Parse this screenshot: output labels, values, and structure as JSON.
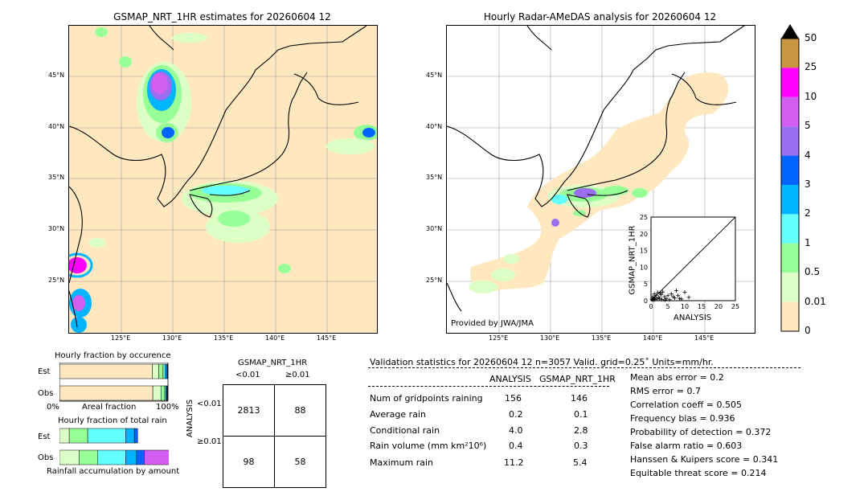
{
  "left_map": {
    "title": "GSMAP_NRT_1HR estimates for 20260604 12",
    "lat_ticks": [
      "45°N",
      "40°N",
      "35°N",
      "30°N",
      "25°N"
    ],
    "lon_ticks": [
      "125°E",
      "130°E",
      "135°E",
      "140°E",
      "145°E"
    ]
  },
  "right_map": {
    "title": "Hourly Radar-AMeDAS analysis for 20260604 12",
    "lat_ticks": [
      "45°N",
      "40°N",
      "35°N",
      "30°N",
      "25°N"
    ],
    "lon_ticks": [
      "125°E",
      "130°E",
      "135°E",
      "140°E",
      "145°E"
    ],
    "credit": "Provided by JWA/JMA"
  },
  "colorbar": {
    "labels": [
      "50",
      "25",
      "10",
      "5",
      "4",
      "3",
      "2",
      "1",
      "0.5",
      "0.01",
      "0"
    ],
    "colors": [
      "#c89640",
      "#ff00ff",
      "#d25ff0",
      "#9a6ef0",
      "#0064ff",
      "#00b4ff",
      "#64ffff",
      "#96ff96",
      "#dcffc8",
      "#ffe8c0"
    ],
    "over_color": "#000000"
  },
  "scatter_inset": {
    "xlabel": "ANALYSIS",
    "ylabel": "GSMAP_NRT_1HR",
    "ticks": [
      "0",
      "5",
      "10",
      "15",
      "20",
      "25"
    ]
  },
  "fraction_occurrence": {
    "title": "Hourly fraction by occurence",
    "rows": [
      "Est",
      "Obs"
    ],
    "xleft": "0%",
    "xmid": "Areal fraction",
    "xright": "100%"
  },
  "fraction_total": {
    "title": "Hourly fraction of total rain",
    "rows": [
      "Est",
      "Obs"
    ],
    "xlabel": "Rainfall accumulation by amount"
  },
  "contingency": {
    "title": "GSMAP_NRT_1HR",
    "col_headers": [
      "<0.01",
      "≥0.01"
    ],
    "row_label": "ANALYSIS",
    "row_headers": [
      "<0.01",
      "≥0.01"
    ],
    "cells": [
      [
        "2813",
        "88"
      ],
      [
        "98",
        "58"
      ]
    ]
  },
  "validation": {
    "header": "Validation statistics for 20260604 12  n=3057 Valid. grid=0.25˚ Units=mm/hr.",
    "col_analysis": "ANALYSIS",
    "col_gsmap": "GSMAP_NRT_1HR",
    "rows": [
      {
        "label": "Num of gridpoints raining",
        "analysis": "156",
        "gsmap": "146"
      },
      {
        "label": "Average rain",
        "analysis": "0.2",
        "gsmap": "0.1"
      },
      {
        "label": "Conditional rain",
        "analysis": "4.0",
        "gsmap": "2.8"
      },
      {
        "label": "Rain volume (mm km²10⁶)",
        "analysis": "0.4",
        "gsmap": "0.3"
      },
      {
        "label": "Maximum rain",
        "analysis": "11.2",
        "gsmap": "5.4"
      }
    ],
    "scores": [
      "Mean abs error =    0.2",
      "RMS error =    0.7",
      "Correlation coeff =  0.505",
      "Frequency bias =  0.936",
      "Probability of detection =  0.372",
      "False alarm ratio =  0.603",
      "Hanssen & Kuipers score =  0.341",
      "Equitable threat score =  0.214"
    ]
  },
  "chart_data": [
    {
      "type": "scatter",
      "title": "",
      "xlabel": "ANALYSIS",
      "ylabel": "GSMAP_NRT_1HR",
      "xlim": [
        0,
        25
      ],
      "ylim": [
        0,
        25
      ],
      "x": [
        0.3,
        0.5,
        0.8,
        1.0,
        1.2,
        1.5,
        1.8,
        2.0,
        2.3,
        2.5,
        3.0,
        3.2,
        3.5,
        4.0,
        4.5,
        5.0,
        5.5,
        6.0,
        7.0,
        7.5,
        8.0,
        9.0,
        10.0,
        11.2,
        0.6,
        1.1,
        2.8,
        4.2,
        6.5,
        8.5
      ],
      "y": [
        0.4,
        1.2,
        0.6,
        2.0,
        0.9,
        1.6,
        0.5,
        2.4,
        1.0,
        0.7,
        1.8,
        0.4,
        2.6,
        1.2,
        0.6,
        1.5,
        0.3,
        2.0,
        0.8,
        3.0,
        1.5,
        0.5,
        2.5,
        1.0,
        0.2,
        0.3,
        2.2,
        0.2,
        1.2,
        0.6
      ]
    },
    {
      "type": "bar",
      "title": "Hourly fraction by occurence",
      "categories": [
        "Est",
        "Obs"
      ],
      "series_colors": [
        "#ffe8c0",
        "#dcffc8",
        "#96ff96",
        "#64ffff",
        "#00b4ff",
        "#0064ff",
        "#9a6ef0"
      ],
      "stack_fractions": [
        [
          0.855,
          0.06,
          0.04,
          0.02,
          0.015,
          0.007,
          0.003
        ],
        [
          0.86,
          0.075,
          0.035,
          0.012,
          0.008,
          0.006,
          0.004
        ]
      ]
    },
    {
      "type": "bar",
      "title": "Hourly fraction of total rain",
      "categories": [
        "Est",
        "Obs"
      ],
      "series_colors": [
        "#dcffc8",
        "#96ff96",
        "#64ffff",
        "#00b4ff",
        "#0064ff",
        "#9a6ef0",
        "#d25ff0",
        "#ff00ff"
      ],
      "stack_fractions": [
        [
          0.09,
          0.17,
          0.35,
          0.08,
          0.03,
          0.0,
          0.0,
          0.0
        ],
        [
          0.18,
          0.17,
          0.26,
          0.1,
          0.07,
          0.0,
          0.25,
          0.03
        ]
      ]
    }
  ]
}
